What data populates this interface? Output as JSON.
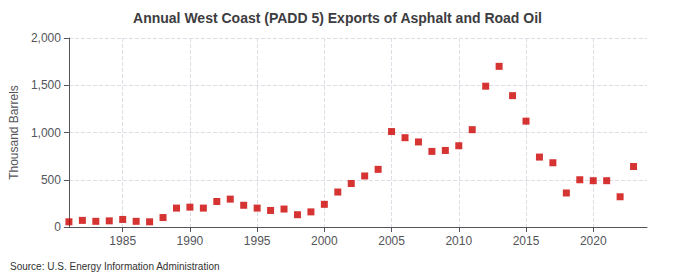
{
  "chart_data": {
    "type": "scatter",
    "title": "Annual West Coast (PADD 5) Exports of Asphalt and Road Oil",
    "ylabel": "Thousand Barrels",
    "annotations": [
      "Source: U.S. Energy Information Administration"
    ],
    "x": [
      1981,
      1982,
      1983,
      1984,
      1985,
      1986,
      1987,
      1988,
      1989,
      1990,
      1991,
      1992,
      1993,
      1994,
      1995,
      1996,
      1997,
      1998,
      1999,
      2000,
      2001,
      2002,
      2003,
      2004,
      2005,
      2006,
      2007,
      2008,
      2009,
      2010,
      2011,
      2012,
      2013,
      2014,
      2015,
      2016,
      2017,
      2018,
      2019,
      2020,
      2021,
      2022,
      2023
    ],
    "values": [
      55,
      70,
      60,
      65,
      80,
      60,
      55,
      100,
      200,
      210,
      200,
      270,
      295,
      230,
      200,
      175,
      190,
      130,
      160,
      240,
      370,
      460,
      540,
      610,
      1010,
      945,
      900,
      800,
      810,
      860,
      1030,
      1490,
      1700,
      1390,
      1120,
      740,
      680,
      360,
      500,
      490,
      490,
      320,
      640
    ],
    "color": "#cc0000",
    "marker": "square",
    "xlim": [
      1981,
      2024
    ],
    "xticks": [
      1985,
      1990,
      1995,
      2000,
      2005,
      2010,
      2015,
      2020
    ],
    "ylim": [
      0,
      2000
    ],
    "yticks": [
      0,
      500,
      {
        "value": 1000,
        "label": "1,000"
      },
      {
        "value": 1500,
        "label": "1,500"
      },
      {
        "value": 2000,
        "label": "2,000"
      }
    ],
    "grid": true
  }
}
